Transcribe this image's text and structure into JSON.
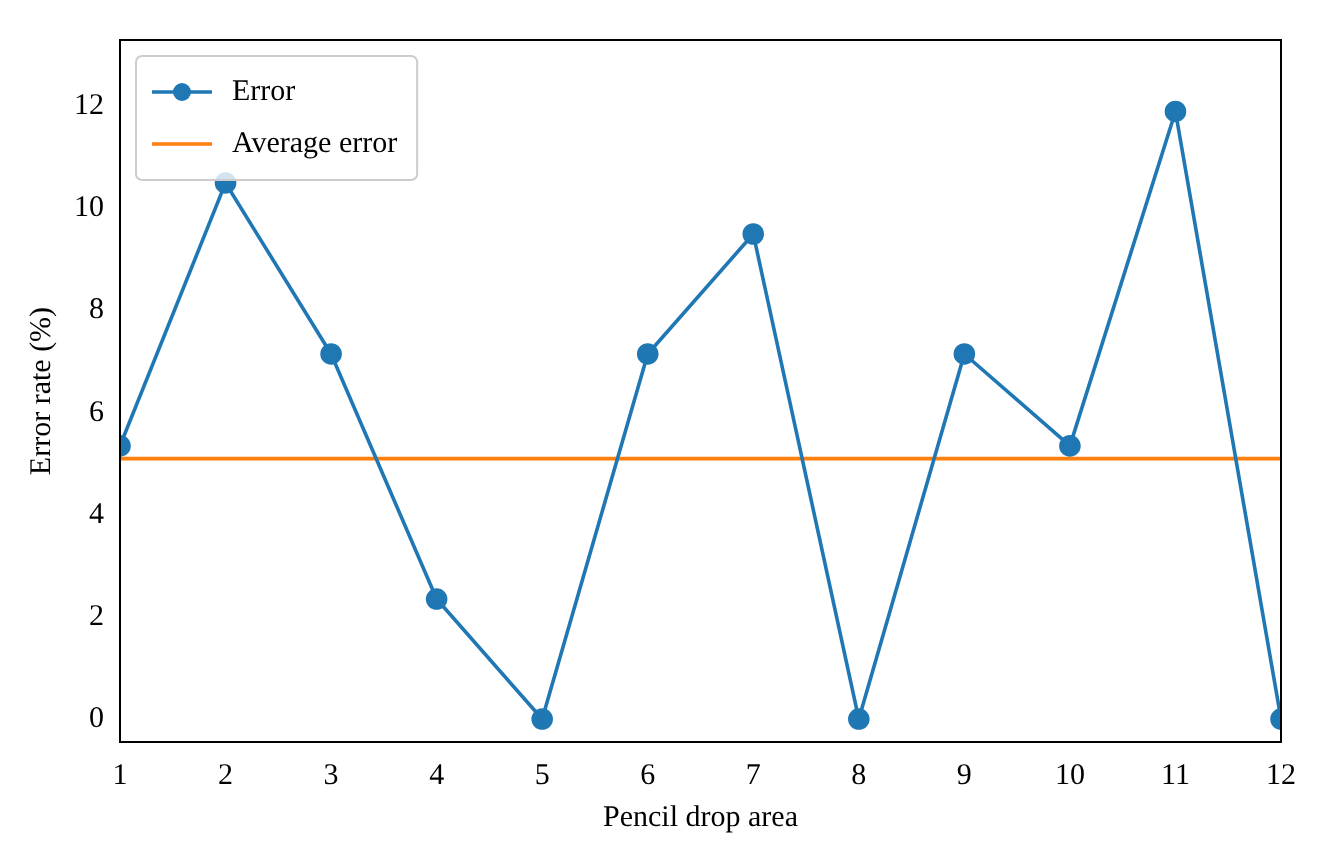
{
  "chart_data": {
    "type": "line",
    "xlabel": "Pencil drop area",
    "ylabel": "Error rate (%)",
    "x": [
      1,
      2,
      3,
      4,
      5,
      6,
      7,
      8,
      9,
      10,
      11,
      12
    ],
    "series": [
      {
        "name": "Error",
        "color": "#1f77b4",
        "marker": "circle",
        "values": [
          5.35,
          10.5,
          7.15,
          2.35,
          0,
          7.15,
          9.5,
          0,
          7.15,
          5.35,
          11.9,
          0
        ]
      },
      {
        "name": "Average error",
        "color": "#ff7f0e",
        "marker": "none",
        "values": [
          5.1,
          5.1,
          5.1,
          5.1,
          5.1,
          5.1,
          5.1,
          5.1,
          5.1,
          5.1,
          5.1,
          5.1
        ]
      }
    ],
    "xlim": [
      1,
      12
    ],
    "xticks": [
      1,
      2,
      3,
      4,
      5,
      6,
      7,
      8,
      9,
      10,
      11,
      12
    ],
    "ylim": [
      -0.45,
      13.3
    ],
    "yticks": [
      0,
      2,
      4,
      6,
      8,
      10,
      12
    ],
    "grid": false,
    "legend": "top left",
    "line_style": "solid"
  }
}
